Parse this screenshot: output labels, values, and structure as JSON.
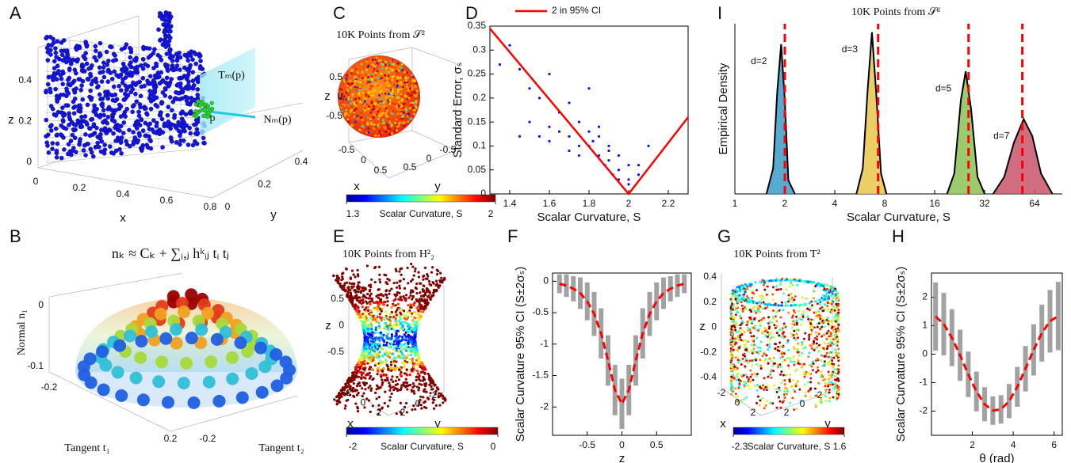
{
  "panel_labels": [
    "A",
    "B",
    "C",
    "D",
    "E",
    "F",
    "G",
    "H",
    "I"
  ],
  "chart_data": [
    {
      "type": "surface3d",
      "xlabel": "x",
      "ylabel": "y",
      "zlabel": "z",
      "xticks": [
        0,
        0.2,
        0.4,
        0.6,
        0.8
      ],
      "yticks": [
        0,
        0.2,
        0.4
      ],
      "zticks": [
        0,
        0.2,
        0.4
      ],
      "annotations": [
        "Tₘ(p)",
        "Nₘ(p)",
        "p"
      ]
    },
    {
      "type": "dome3d",
      "title": "nₖ ≈ Cₖ + ∑ᵢ,ⱼ hᵏᵢⱼ tᵢ tⱼ",
      "xlabel": "Tangent t₁",
      "ylabel": "Tangent t₂",
      "zlabel": "Normal n₁",
      "xticks": [
        -0.2,
        0.2
      ],
      "yticks": [
        -0.2
      ],
      "zticks": [
        -0.1,
        0
      ]
    },
    {
      "type": "sphere",
      "title": "10K Points from 𝒮²",
      "xlabel": "x",
      "ylabel": "y",
      "zlabel": "z",
      "xticks": [
        -0.5,
        0,
        0.5
      ],
      "yticks": [
        -0.5,
        0,
        0.5
      ],
      "zticks": [
        -0.5,
        0,
        0.5
      ],
      "colorbar": {
        "label": "Scalar Curvature, S",
        "min": 1.3,
        "max": 2
      }
    },
    {
      "type": "scatter",
      "xlabel": "Scalar Curvature, S",
      "ylabel": "Standard Error, σₛ",
      "xlim": [
        1.3,
        2.3
      ],
      "ylim": [
        0,
        0.35
      ],
      "xticks": [
        1.4,
        1.6,
        1.8,
        2,
        2.2
      ],
      "yticks": [
        0,
        0.05,
        0.1,
        0.15,
        0.2,
        0.25,
        0.3,
        0.35
      ],
      "series": [
        {
          "color": "#1010f0",
          "x": [
            1.35,
            1.4,
            1.45,
            1.5,
            1.5,
            1.55,
            1.6,
            1.6,
            1.65,
            1.7,
            1.7,
            1.75,
            1.75,
            1.8,
            1.8,
            1.85,
            1.85,
            1.9,
            1.9,
            1.95,
            1.95,
            2.0,
            2.0,
            2.05,
            2.05,
            2.1,
            1.45,
            1.55,
            1.65,
            1.75,
            1.85,
            1.6,
            1.7,
            1.8,
            1.9,
            1.95,
            2.0,
            1.88,
            1.92,
            1.82
          ],
          "values": [
            0.27,
            0.31,
            0.26,
            0.22,
            0.15,
            0.2,
            0.14,
            0.25,
            0.13,
            0.12,
            0.19,
            0.1,
            0.15,
            0.1,
            0.22,
            0.08,
            0.12,
            0.07,
            0.1,
            0.05,
            0.08,
            0.03,
            0.06,
            0.06,
            0.04,
            0.1,
            0.12,
            0.12,
            0.17,
            0.08,
            0.14,
            0.11,
            0.09,
            0.13,
            0.09,
            0.03,
            0.02,
            0.06,
            0.04,
            0.11
          ]
        },
        {
          "name": "2 in 95% CI",
          "color": "#ff0000",
          "x": [
            1.3,
            2,
            2.3
          ],
          "values": [
            0.345,
            0,
            0.16
          ]
        }
      ]
    },
    {
      "type": "hyperboloid",
      "title": "10K Points from H²₂",
      "xlabel": "x",
      "ylabel": "y",
      "zlabel": "z",
      "xticks": [
        -2,
        0,
        2
      ],
      "yticks": [
        -2,
        0,
        2
      ],
      "zticks": [
        -0.5,
        0,
        0.5
      ],
      "colorbar": {
        "label": "Scalar Curvature, S",
        "min": -2,
        "max": 0
      }
    },
    {
      "type": "errorline",
      "xlabel": "z",
      "ylabel": "Scalar Curvature 95% CI (S±2σₛ)",
      "xlim": [
        -1,
        1
      ],
      "ylim": [
        -2.45,
        0.13
      ],
      "xticks": [
        -0.5,
        0,
        0.5
      ],
      "yticks": [
        -2,
        -1.5,
        -1,
        -0.5,
        0
      ],
      "color": "#ff0000",
      "error_color": "#8c8c8c",
      "x": [
        -0.9,
        -0.8,
        -0.7,
        -0.6,
        -0.5,
        -0.4,
        -0.3,
        -0.2,
        -0.1,
        0,
        0.1,
        0.2,
        0.3,
        0.4,
        0.5,
        0.6,
        0.7,
        0.8,
        0.9
      ],
      "values": [
        -0.04,
        -0.07,
        -0.12,
        -0.19,
        -0.32,
        -0.52,
        -0.83,
        -1.26,
        -1.73,
        -1.95,
        -1.73,
        -1.26,
        -0.83,
        -0.52,
        -0.32,
        -0.19,
        -0.12,
        -0.07,
        -0.04
      ],
      "error": [
        0.15,
        0.18,
        0.2,
        0.25,
        0.3,
        0.35,
        0.4,
        0.4,
        0.4,
        0.4,
        0.4,
        0.4,
        0.4,
        0.35,
        0.3,
        0.25,
        0.2,
        0.18,
        0.15
      ]
    },
    {
      "type": "cylinder",
      "title": "10K Points from T²",
      "xlabel": "x",
      "ylabel": "y",
      "zlabel": "z",
      "xticks": [
        -2,
        0,
        2
      ],
      "yticks": [
        -2,
        0,
        2
      ],
      "zticks": [
        -0.4,
        -0.2,
        0,
        0.2,
        0.4
      ],
      "colorbar": {
        "label": "Scalar Curvature, S",
        "min": -2.3,
        "max": 1.6
      }
    },
    {
      "type": "errorline",
      "xlabel": "θ (rad)",
      "ylabel": "Scalar Curvature 95% CI (S±2σₛ)",
      "xlim": [
        0,
        6.4
      ],
      "ylim": [
        -2.85,
        2.85
      ],
      "xticks": [
        2,
        4,
        6
      ],
      "yticks": [
        -2,
        -1,
        0,
        1,
        2
      ],
      "color": "#ff0000",
      "error_color": "#8c8c8c",
      "x": [
        0.2,
        0.6,
        1.0,
        1.4,
        1.8,
        2.2,
        2.6,
        3.0,
        3.4,
        3.8,
        4.2,
        4.6,
        5.0,
        5.4,
        5.8,
        6.2
      ],
      "values": [
        1.32,
        1.06,
        0.58,
        -0.04,
        -0.71,
        -1.31,
        -1.76,
        -1.98,
        -1.94,
        -1.65,
        -1.15,
        -0.51,
        0.15,
        0.74,
        1.16,
        1.34
      ],
      "error": [
        1.2,
        1.1,
        1.0,
        0.9,
        0.8,
        0.7,
        0.6,
        0.5,
        0.5,
        0.6,
        0.7,
        0.8,
        0.9,
        1.0,
        1.1,
        1.2
      ]
    },
    {
      "type": "density",
      "title": "10K Points from 𝒮ᵈ",
      "xlabel": "Scalar Curvature, S",
      "ylabel": "Empirical Density",
      "xscale": "log",
      "box": false,
      "xlim": [
        1,
        94
      ],
      "ylim": [
        0,
        1
      ],
      "xticks": [
        1,
        2,
        4,
        8,
        16,
        32,
        64
      ],
      "series": [
        {
          "name": "d=2",
          "color": "#3a9bc8",
          "true_value": 2,
          "x": [
            1.55,
            1.7,
            1.8,
            1.9,
            2.0,
            2.1,
            2.3
          ],
          "values": [
            0,
            0.15,
            0.6,
            0.88,
            0.55,
            0.08,
            0
          ]
        },
        {
          "name": "d=3",
          "color": "#e8c74a",
          "true_value": 7.3,
          "x": [
            5.4,
            5.9,
            6.3,
            6.7,
            7.1,
            7.6,
            8.2
          ],
          "values": [
            0,
            0.15,
            0.6,
            0.95,
            0.6,
            0.12,
            0
          ]
        },
        {
          "name": "d=5",
          "color": "#8cc152",
          "true_value": 25.6,
          "x": [
            19,
            21,
            23,
            24.6,
            26.5,
            29,
            32
          ],
          "values": [
            0,
            0.12,
            0.55,
            0.72,
            0.5,
            0.1,
            0
          ]
        },
        {
          "name": "d=7",
          "color": "#c9546b",
          "true_value": 54,
          "x": [
            36,
            42,
            48,
            55,
            62,
            70,
            82
          ],
          "values": [
            0,
            0.1,
            0.3,
            0.44,
            0.34,
            0.12,
            0
          ]
        }
      ]
    }
  ]
}
